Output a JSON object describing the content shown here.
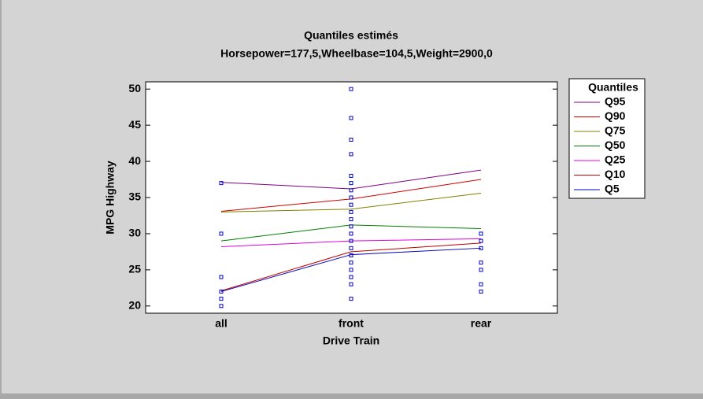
{
  "chart_data": {
    "type": "line",
    "title": "Quantiles estimés",
    "subtitle": "Horsepower=177,5,Wheelbase=104,5,Weight=2900,0",
    "x_label": "Drive Train",
    "y_label": "MPG Highway",
    "categories": [
      "all",
      "front",
      "rear"
    ],
    "ylim": [
      19,
      51
    ],
    "yticks": [
      20,
      25,
      30,
      35,
      40,
      45,
      50
    ],
    "grid": false,
    "legend_title": "Quantiles",
    "legend": "right",
    "series": [
      {
        "name": "Q95",
        "color": "#800080",
        "values": [
          37.1,
          36.2,
          38.8
        ]
      },
      {
        "name": "Q90",
        "color": "#d00000",
        "values": [
          33.1,
          34.8,
          37.5
        ]
      },
      {
        "name": "Q75",
        "color": "#808000",
        "values": [
          33.0,
          33.4,
          35.6
        ]
      },
      {
        "name": "Q50",
        "color": "#008000",
        "values": [
          29.0,
          31.2,
          30.7
        ]
      },
      {
        "name": "Q25",
        "color": "#e000e0",
        "values": [
          28.2,
          29.0,
          29.3
        ]
      },
      {
        "name": "Q10",
        "color": "#c00000",
        "values": [
          22.1,
          27.5,
          28.7
        ]
      },
      {
        "name": "Q5",
        "color": "#0000c0",
        "values": [
          22.0,
          27.1,
          28.0
        ]
      }
    ],
    "observations": {
      "color": "#0000c0",
      "x": [
        "all",
        "all",
        "all",
        "all",
        "all",
        "all",
        "front",
        "front",
        "front",
        "front",
        "front",
        "front",
        "front",
        "front",
        "front",
        "front",
        "front",
        "front",
        "front",
        "front",
        "front",
        "front",
        "front",
        "front",
        "front",
        "front",
        "front",
        "rear",
        "rear",
        "rear",
        "rear",
        "rear",
        "rear",
        "rear"
      ],
      "values": [
        37,
        30,
        24,
        22,
        21,
        20,
        50,
        46,
        43,
        41,
        38,
        37,
        36,
        35,
        34,
        33,
        32,
        31,
        30,
        29,
        28,
        27,
        26,
        25,
        24,
        23,
        21,
        30,
        29,
        28,
        26,
        25,
        23,
        22
      ]
    }
  }
}
